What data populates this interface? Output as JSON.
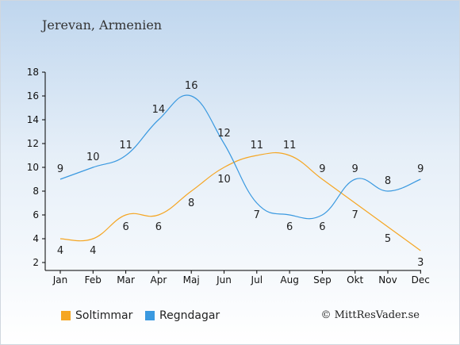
{
  "title": "Jerevan, Armenien",
  "copyright": "© MittResVader.se",
  "chart_data": {
    "type": "line",
    "categories": [
      "Jan",
      "Feb",
      "Mar",
      "Apr",
      "Maj",
      "Jun",
      "Jul",
      "Aug",
      "Sep",
      "Okt",
      "Nov",
      "Dec"
    ],
    "ylim": [
      2,
      18
    ],
    "yticks": [
      2,
      4,
      6,
      8,
      10,
      12,
      14,
      16,
      18
    ],
    "grid": false,
    "legend_position": "bottom-left",
    "series": [
      {
        "name": "Soltimmar",
        "color": "#f5a623",
        "values": [
          4,
          4,
          6,
          6,
          8,
          10,
          11,
          11,
          9,
          7,
          5,
          3
        ]
      },
      {
        "name": "Regndagar",
        "color": "#3a99e0",
        "values": [
          9,
          10,
          11,
          14,
          16,
          12,
          7,
          6,
          6,
          9,
          8,
          9
        ]
      }
    ]
  }
}
